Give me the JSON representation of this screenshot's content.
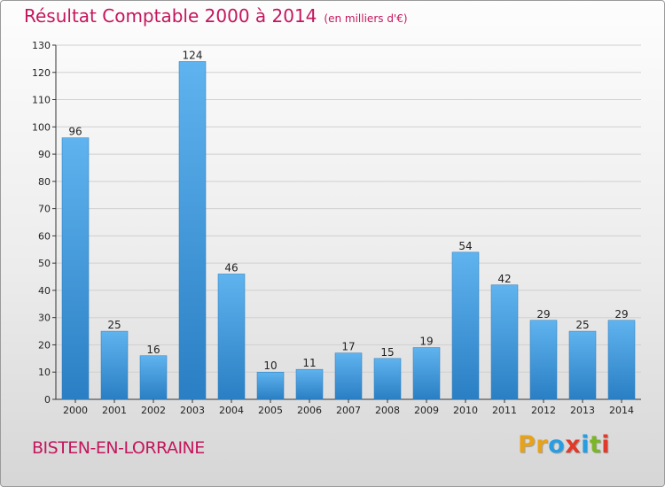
{
  "title": "Résultat Comptable 2000 à 2014",
  "subtitle": "(en milliers d'€)",
  "commune": "BISTEN-EN-LORRAINE",
  "logo": {
    "letters": [
      "P",
      "r",
      "o",
      "x",
      "i",
      "t",
      "i"
    ],
    "colors": [
      "#e8a21a",
      "#e8a21a",
      "#2a9de0",
      "#e03a2a",
      "#2a9de0",
      "#7bb528",
      "#e03a2a"
    ]
  },
  "colors": {
    "title": "#c4165d",
    "bar_light": "#5fb3ee",
    "bar_dark": "#2a7fc4",
    "grid": "#d0d0d0",
    "axis": "#333333"
  },
  "chart_data": {
    "type": "bar",
    "title": "Résultat Comptable 2000 à 2014",
    "subtitle": "(en milliers d'€)",
    "xlabel": "",
    "ylabel": "",
    "categories": [
      "2000",
      "2001",
      "2002",
      "2003",
      "2004",
      "2005",
      "2006",
      "2007",
      "2008",
      "2009",
      "2010",
      "2011",
      "2012",
      "2013",
      "2014"
    ],
    "values": [
      96,
      25,
      16,
      124,
      46,
      10,
      11,
      17,
      15,
      19,
      54,
      42,
      29,
      25,
      29
    ],
    "ylim": [
      0,
      130
    ],
    "yticks": [
      0,
      10,
      20,
      30,
      40,
      50,
      60,
      70,
      80,
      90,
      100,
      110,
      120,
      130
    ],
    "grid": true,
    "data_labels": true
  }
}
